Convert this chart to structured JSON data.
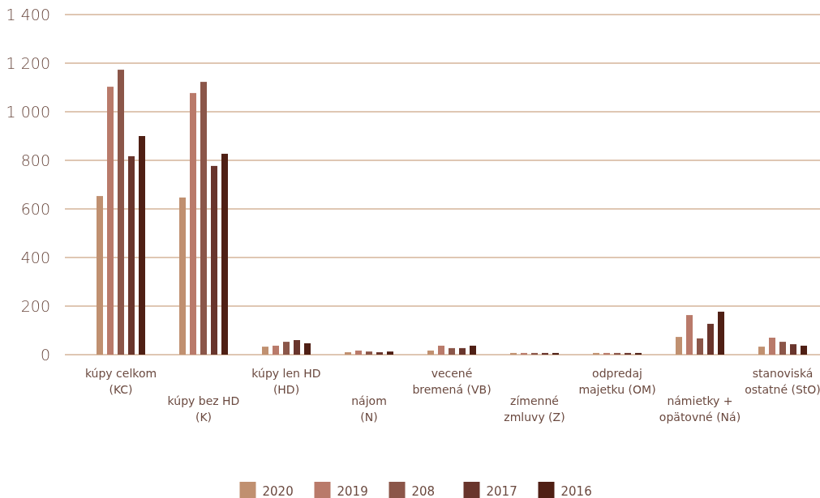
{
  "chart_data": {
    "type": "bar",
    "categories": [
      "kúpy celkom\n(KC)",
      "kúpy bez HD\n(K)",
      "kúpy len HD\n(HD)",
      "nájom\n(N)",
      "vecené\nbremená (VB)",
      "zímenné\nzmluvy (Z)",
      "odpredaj\nmajetku (OM)",
      "námietky +\nopätovné (Ná)",
      "stanoviská\nostatné (StO)"
    ],
    "series": [
      {
        "name": "2020",
        "color": "#c09070",
        "values": [
          653,
          647,
          33,
          10,
          17,
          7,
          7,
          73,
          33
        ]
      },
      {
        "name": "2019",
        "color": "#b97a6a",
        "values": [
          1103,
          1077,
          37,
          17,
          37,
          7,
          7,
          163,
          70
        ]
      },
      {
        "name": "208",
        "color": "#8b5649",
        "values": [
          1173,
          1123,
          53,
          13,
          27,
          7,
          7,
          67,
          53
        ]
      },
      {
        "name": "2017",
        "color": "#69352c",
        "values": [
          817,
          777,
          60,
          10,
          27,
          7,
          7,
          127,
          43
        ]
      },
      {
        "name": "2016",
        "color": "#4f1f14",
        "values": [
          900,
          827,
          47,
          13,
          37,
          7,
          7,
          177,
          37
        ]
      }
    ],
    "ylim": [
      0,
      1400
    ],
    "yticks": [
      0,
      200,
      400,
      600,
      800,
      1000,
      1200,
      1400
    ],
    "grid": "y",
    "legend": "bottom"
  }
}
